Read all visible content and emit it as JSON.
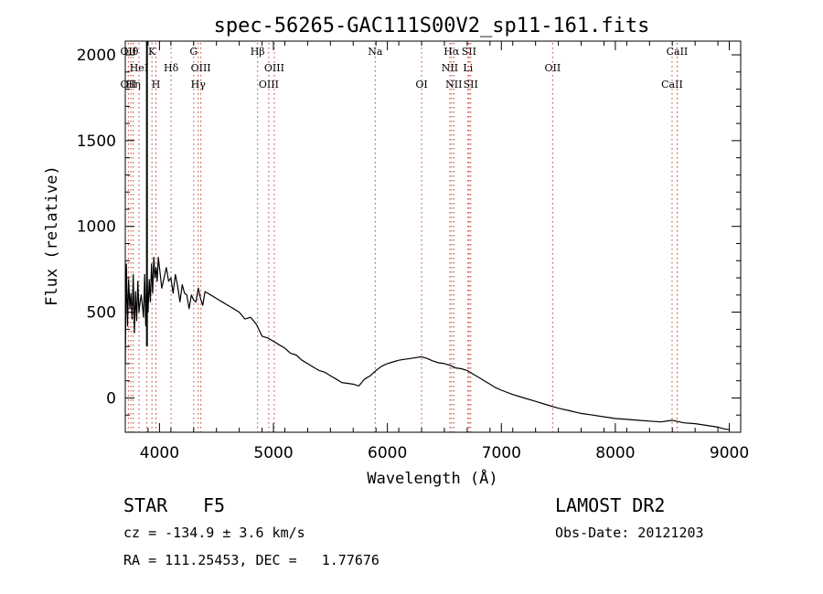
{
  "chart_data": {
    "type": "line",
    "title": "spec-56265-GAC111S00V2_sp11-161.fits",
    "xlabel": "Wavelength (Å)",
    "ylabel": "Flux (relative)",
    "xlim": [
      3700,
      9100
    ],
    "ylim": [
      -200,
      2080
    ],
    "x_ticks": [
      4000,
      5000,
      6000,
      7000,
      8000,
      9000
    ],
    "y_ticks": [
      0,
      500,
      1000,
      1500,
      2000
    ],
    "grid": false,
    "series": [
      {
        "x": [
          3700,
          3710,
          3720,
          3730,
          3740,
          3750,
          3760,
          3770,
          3780,
          3790,
          3800,
          3810,
          3820,
          3830,
          3840,
          3850,
          3860,
          3870,
          3880,
          3890,
          3900,
          3910,
          3920,
          3930,
          3940,
          3950,
          3960,
          3970,
          3980,
          3990,
          4000,
          4020,
          4040,
          4060,
          4080,
          4100,
          4120,
          4140,
          4160,
          4180,
          4200,
          4220,
          4240,
          4260,
          4280,
          4300,
          4320,
          4340,
          4360,
          4380,
          4400,
          4450,
          4500,
          4550,
          4600,
          4650,
          4700,
          4750,
          4800,
          4850,
          4900,
          4950,
          5000,
          5050,
          5100,
          5150,
          5200,
          5250,
          5300,
          5350,
          5400,
          5450,
          5500,
          5550,
          5600,
          5650,
          5700,
          5750,
          5800,
          5850,
          5900,
          5950,
          6000,
          6050,
          6100,
          6150,
          6200,
          6250,
          6300,
          6350,
          6400,
          6450,
          6500,
          6550,
          6600,
          6650,
          6700,
          6750,
          6800,
          6850,
          6900,
          6950,
          7000,
          7100,
          7200,
          7300,
          7400,
          7500,
          7600,
          7700,
          7800,
          7900,
          7950,
          8000,
          8100,
          8200,
          8300,
          8400,
          8500,
          8600,
          8700,
          8800,
          8900,
          8950,
          9000
        ],
        "values": [
          200,
          780,
          420,
          690,
          520,
          610,
          460,
          720,
          380,
          620,
          450,
          680,
          500,
          560,
          600,
          540,
          470,
          720,
          420,
          740,
          500,
          690,
          560,
          780,
          610,
          820,
          700,
          760,
          680,
          820,
          760,
          640,
          700,
          760,
          680,
          700,
          610,
          720,
          650,
          560,
          660,
          610,
          600,
          520,
          600,
          570,
          560,
          640,
          580,
          540,
          620,
          600,
          580,
          560,
          540,
          520,
          500,
          460,
          470,
          430,
          360,
          350,
          330,
          310,
          290,
          260,
          250,
          220,
          200,
          180,
          160,
          150,
          130,
          110,
          90,
          85,
          80,
          70,
          110,
          130,
          160,
          185,
          200,
          210,
          220,
          225,
          230,
          235,
          240,
          230,
          215,
          205,
          200,
          190,
          175,
          170,
          160,
          140,
          120,
          100,
          80,
          60,
          45,
          20,
          0,
          -20,
          -40,
          -60,
          -75,
          -90,
          -100,
          -110,
          -115,
          -120,
          -125,
          -130,
          -135,
          -140,
          -130,
          -145,
          -150,
          -160,
          -170,
          -180,
          -185
        ]
      }
    ],
    "line_marks": [
      {
        "wl": 3727,
        "top": "OII",
        "mid": "",
        "bot": "OII"
      },
      {
        "wl": 3750,
        "top": "Hθ",
        "mid": "",
        "bot": ""
      },
      {
        "wl": 3770,
        "top": "",
        "mid": "",
        "bot": "Hη"
      },
      {
        "wl": 3820,
        "top": "",
        "mid": "HeI",
        "bot": ""
      },
      {
        "wl": 3889,
        "top": "",
        "mid": "",
        "bot": ""
      },
      {
        "wl": 3934,
        "top": "K",
        "mid": "",
        "bot": ""
      },
      {
        "wl": 3969,
        "top": "",
        "mid": "",
        "bot": "H"
      },
      {
        "wl": 4102,
        "top": "",
        "mid": "Hδ",
        "bot": ""
      },
      {
        "wl": 4300,
        "top": "G",
        "mid": "",
        "bot": ""
      },
      {
        "wl": 4340,
        "top": "",
        "mid": "",
        "bot": "Hγ"
      },
      {
        "wl": 4363,
        "top": "",
        "mid": "OIII",
        "bot": ""
      },
      {
        "wl": 4861,
        "top": "Hβ",
        "mid": "",
        "bot": ""
      },
      {
        "wl": 4959,
        "top": "",
        "mid": "",
        "bot": "OIII"
      },
      {
        "wl": 5007,
        "top": "",
        "mid": "OIII",
        "bot": ""
      },
      {
        "wl": 5893,
        "top": "Na",
        "mid": "",
        "bot": ""
      },
      {
        "wl": 6300,
        "top": "",
        "mid": "",
        "bot": "OI"
      },
      {
        "wl": 6548,
        "top": "",
        "mid": "NII",
        "bot": ""
      },
      {
        "wl": 6563,
        "top": "Hα",
        "mid": "",
        "bot": ""
      },
      {
        "wl": 6583,
        "top": "",
        "mid": "",
        "bot": "NII"
      },
      {
        "wl": 6707,
        "top": "",
        "mid": "Li",
        "bot": ""
      },
      {
        "wl": 6716,
        "top": "SII",
        "mid": "",
        "bot": ""
      },
      {
        "wl": 6731,
        "top": "",
        "mid": "",
        "bot": "SII"
      },
      {
        "wl": 7450,
        "top": "",
        "mid": "OII",
        "bot": ""
      },
      {
        "wl": 8498,
        "top": "",
        "mid": "",
        "bot": "CaII"
      },
      {
        "wl": 8542,
        "top": "CaII",
        "mid": "",
        "bot": ""
      }
    ],
    "spike_wl": 3890
  },
  "info": {
    "class_label": "STAR",
    "subclass": "F5",
    "cz": "cz = -134.9 ± 3.6 km/s",
    "coords": "RA = 111.25453, DEC =   1.77676",
    "survey": "LAMOST DR2",
    "obs_date": "Obs-Date: 20121203"
  }
}
